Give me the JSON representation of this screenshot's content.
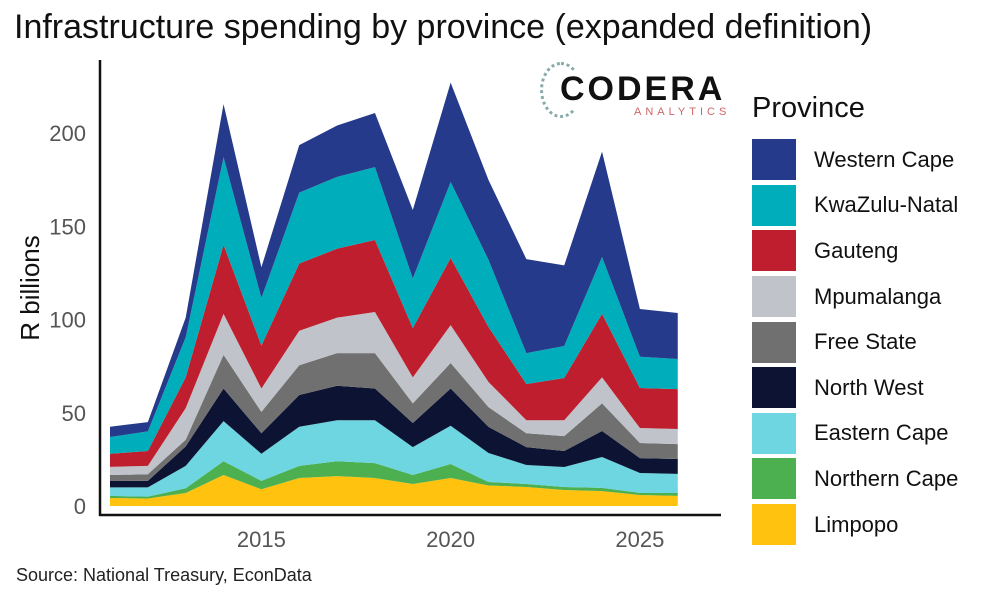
{
  "title": "Infrastructure spending by province (expanded definition)",
  "source": "Source: National Treasury, EconData",
  "logo": {
    "main": "CODERA",
    "sub": "ANALYTICS"
  },
  "chart_data": {
    "type": "area",
    "stacked": true,
    "title": "Infrastructure spending by province (expanded definition)",
    "xlabel": "",
    "ylabel": "R billions",
    "x": [
      2011,
      2012,
      2013,
      2014,
      2015,
      2016,
      2017,
      2018,
      2019,
      2020,
      2021,
      2022,
      2023,
      2024,
      2025,
      2026
    ],
    "xticks": [
      2015,
      2020,
      2025
    ],
    "yticks": [
      0,
      50,
      100,
      150,
      200
    ],
    "ylim": [
      0,
      235
    ],
    "legend_title": "Province",
    "legend_position": "right",
    "series": [
      {
        "name": "Limpopo",
        "color": "#FFC20E",
        "values": [
          4.3,
          4.0,
          7.0,
          16.6,
          9.0,
          15.0,
          16.0,
          15.0,
          11.8,
          15.0,
          11.0,
          10.2,
          8.6,
          8.0,
          5.9,
          5.4
        ]
      },
      {
        "name": "Northern Cape",
        "color": "#4CAF50",
        "values": [
          1.1,
          1.0,
          2.5,
          7.4,
          4.5,
          6.5,
          8.0,
          8.0,
          4.8,
          7.5,
          1.9,
          1.6,
          1.6,
          1.7,
          1.1,
          1.6
        ]
      },
      {
        "name": "Eastern Cape",
        "color": "#6ED6E0",
        "values": [
          4.6,
          5.0,
          12.0,
          21.5,
          14.5,
          21.0,
          22.0,
          23.0,
          15.0,
          20.5,
          15.5,
          10.2,
          10.7,
          16.6,
          10.7,
          10.2
        ]
      },
      {
        "name": "North West",
        "color": "#0D1433",
        "values": [
          3.4,
          3.5,
          10.5,
          17.5,
          11.0,
          17.0,
          18.5,
          17.0,
          12.9,
          20.0,
          14.0,
          9.6,
          8.6,
          13.9,
          8.0,
          8.0
        ]
      },
      {
        "name": "Free State",
        "color": "#707070",
        "values": [
          3.2,
          3.5,
          3.5,
          18.0,
          11.5,
          16.0,
          17.5,
          19.0,
          10.5,
          13.7,
          10.6,
          7.4,
          8.0,
          14.8,
          8.1,
          8.0
        ]
      },
      {
        "name": "Mpumalanga",
        "color": "#C0C3CA",
        "values": [
          4.4,
          4.5,
          17.0,
          22.0,
          12.5,
          18.5,
          19.0,
          22.0,
          14.0,
          20.3,
          13.5,
          7.0,
          8.5,
          14.0,
          8.0,
          8.1
        ]
      },
      {
        "name": "Gauteng",
        "color": "#BE1E2D",
        "values": [
          7.0,
          8.0,
          16.5,
          37.0,
          23.0,
          36.0,
          37.0,
          38.6,
          26.4,
          36.0,
          29.5,
          19.4,
          22.6,
          34.0,
          21.5,
          21.4
        ]
      },
      {
        "name": "KwaZulu-Natal",
        "color": "#00AEBB",
        "values": [
          9.0,
          10.5,
          21.5,
          47.0,
          25.5,
          38.0,
          38.5,
          39.1,
          26.6,
          40.7,
          36.0,
          16.6,
          17.2,
          30.5,
          16.7,
          16.1
        ]
      },
      {
        "name": "Western Cape",
        "color": "#253A8A",
        "values": [
          5.5,
          5.0,
          10.5,
          28.5,
          16.5,
          25.5,
          27.5,
          29.0,
          36.7,
          53.3,
          42.8,
          50.4,
          43.2,
          56.5,
          25.6,
          24.7
        ]
      }
    ]
  }
}
